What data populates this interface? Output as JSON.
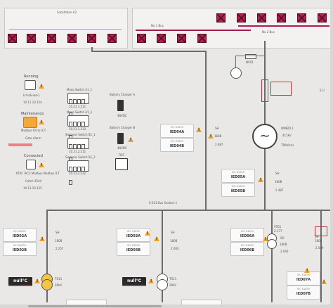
{
  "substation_a2": {
    "title": "Substation A2"
  },
  "bus_labels": {
    "no1": "No 1 Bus",
    "no2": "No 2 Bus",
    "section_s211": "S-211 Bus Section 1"
  },
  "side_letters": "S U",
  "status": {
    "running_label": "Running",
    "running_addr": "tcl-lab-ied-1",
    "ip1": "10.11.10.124",
    "maintenance_label": "Maintenance",
    "maintenance_sub": "Modbus RS to ICT",
    "maintenance_note": "Gate Alarm",
    "connected_label": "Connected",
    "connected_sub": "RTAC IAC2 Modbus Modbus ICT",
    "connected_note": "Catch 3540",
    "ip3": "10.11.10.125"
  },
  "switches": [
    {
      "name": "Moxa Switch A1_1",
      "ip": "10.21.1.211"
    },
    {
      "name": "Moxa Switch A1_2",
      "ip": "10.21.1.212"
    },
    {
      "name": "Siemens Switch B1_1",
      "ip": "10.21.2.211"
    },
    {
      "name": "Siemens Switch B1_2",
      "ip": "10.21.2.212"
    }
  ],
  "chargers": [
    {
      "name": "Battery Charger A",
      "value": "48VDC"
    },
    {
      "name": "Battery Charger B",
      "value": "48VDC"
    },
    {
      "name": "FDP",
      "value": ""
    }
  ],
  "ieds": {
    "ied04a": {
      "head": "IEC 61850",
      "label": "IED04A"
    },
    "ied04b": {
      "head": "IEC 61850",
      "label": "IED04B"
    },
    "ied05a": {
      "head": "IEC 61850",
      "label": "IED05A"
    },
    "ied05b": {
      "head": "IEC 61850",
      "label": "IED05B"
    },
    "ied02a": {
      "head": "IEC 61850",
      "label": "IED02A"
    },
    "ied02b": {
      "head": "IEC 61850",
      "label": "IED02B"
    },
    "ied03a": {
      "head": "IEC 61850",
      "label": "IED03A"
    },
    "ied03b": {
      "head": "IEC 61850",
      "label": "IED03B"
    },
    "ied06a": {
      "head": "IEC 61850",
      "label": "IED06A"
    },
    "ied06b": {
      "head": "IEC 61850",
      "label": "IED06B"
    },
    "ied07a": {
      "head": "IEC 61850",
      "label": "IED07A"
    },
    "ied07b": {
      "head": "IEC 61850",
      "label": "IED07B"
    }
  },
  "feeders": {
    "f04": {
      "top": "SH",
      "mid": "180B",
      "bot": "2.087"
    },
    "f05": {
      "top": "SH",
      "mid": "180B",
      "bot": "2.487"
    },
    "f02": {
      "top": "SH",
      "mid": "180B",
      "bot": "2.257"
    },
    "f03": {
      "top": "SH",
      "mid": "180B",
      "bot": "2.083"
    },
    "f06": {
      "top": "SH",
      "mid": "180B",
      "bot": "2.040"
    },
    "f07": {
      "top": "SH",
      "mid": "180B",
      "bot": "2.049"
    }
  },
  "generator": {
    "name": "WINBD 1",
    "v1": "415kV",
    "v2": "TRAN tris"
  },
  "nser": {
    "label": "NSR1"
  },
  "transformers": {
    "t1": {
      "name": "TX11",
      "v": "28kV"
    },
    "t2": {
      "name": "TX11",
      "v": "28kV"
    },
    "vt": {
      "name": "VT01",
      "v": "2.177"
    }
  },
  "temps": [
    {
      "value": "null",
      "unit": "°C"
    },
    {
      "value": "null",
      "unit": "°C"
    }
  ],
  "colors": {
    "breaker": "#b02050",
    "bus": "#a81c54",
    "line": "#6b6b6b",
    "busbar_blue": "#7fa6d6"
  }
}
